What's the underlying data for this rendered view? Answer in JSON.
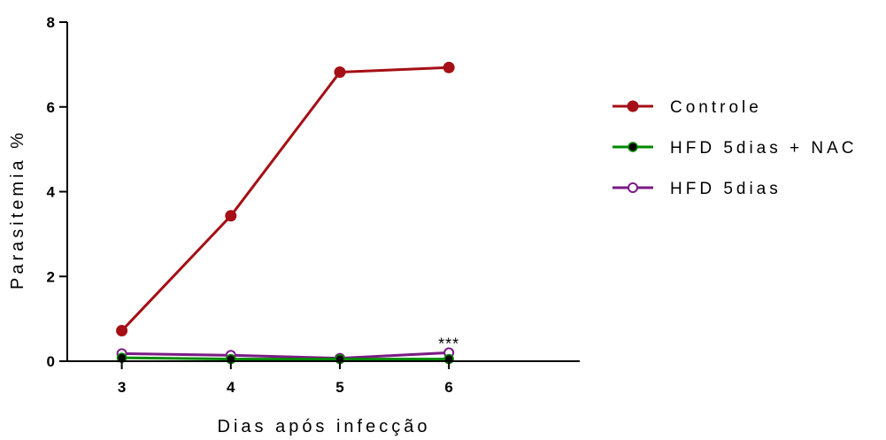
{
  "chart_data": {
    "type": "line",
    "title": "",
    "xlabel": "Dias após infecção",
    "ylabel": "Parasitemia %",
    "x": [
      3,
      4,
      5,
      6
    ],
    "xlim": [
      2.5,
      7.2
    ],
    "ylim": [
      0,
      8
    ],
    "yticks": [
      0,
      2,
      4,
      6,
      8
    ],
    "grid": false,
    "legend_position": "right",
    "series": [
      {
        "name": "Controle",
        "values": [
          0.72,
          3.43,
          6.82,
          6.93
        ],
        "color": "#a50f15",
        "marker": "filled-circle"
      },
      {
        "name": "HFD 5dias + NAC",
        "values": [
          0.08,
          0.05,
          0.05,
          0.05
        ],
        "color": "#008a00",
        "marker": "black-filled-circle"
      },
      {
        "name": "HFD 5dias",
        "values": [
          0.18,
          0.14,
          0.07,
          0.2
        ],
        "color": "#7b1a86",
        "marker": "open-circle"
      }
    ],
    "annotations": [
      {
        "text": "***",
        "x": 6,
        "y": 0.2
      }
    ]
  }
}
